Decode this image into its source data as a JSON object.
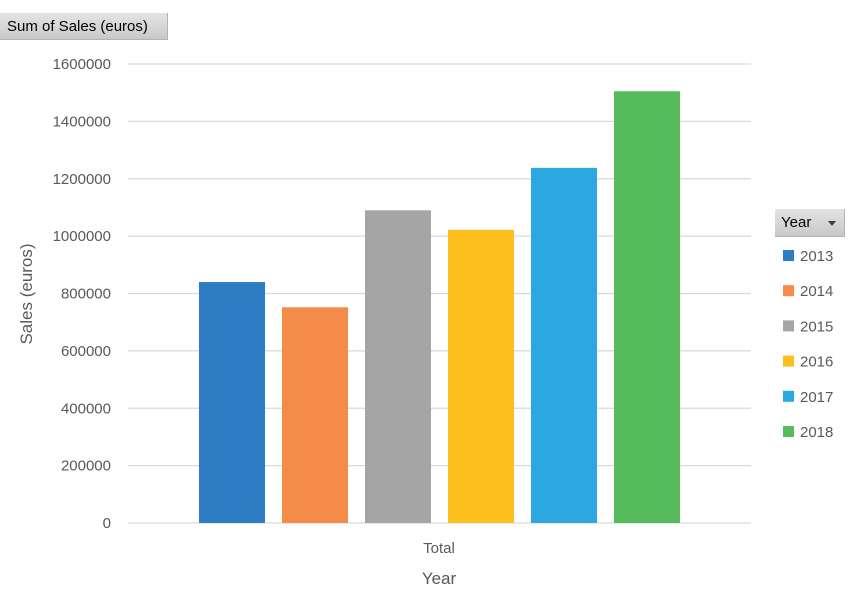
{
  "field_button": {
    "label": "Sum of Sales (euros)"
  },
  "legend_button": {
    "label": "Year"
  },
  "chart_data": {
    "type": "bar",
    "categories": [
      "Total"
    ],
    "series": [
      {
        "name": "2013",
        "values": [
          840000
        ],
        "color": "#2e7dc4"
      },
      {
        "name": "2014",
        "values": [
          752000
        ],
        "color": "#f58b48"
      },
      {
        "name": "2015",
        "values": [
          1090000
        ],
        "color": "#a5a5a5"
      },
      {
        "name": "2016",
        "values": [
          1022000
        ],
        "color": "#fcbf1e"
      },
      {
        "name": "2017",
        "values": [
          1238000
        ],
        "color": "#2ba8e0"
      },
      {
        "name": "2018",
        "values": [
          1505000
        ],
        "color": "#56bc5b"
      }
    ],
    "xlabel": "Year",
    "ylabel": "Sales (euros)",
    "ylim": [
      0,
      1600000
    ],
    "yticks": [
      0,
      200000,
      400000,
      600000,
      800000,
      1000000,
      1200000,
      1400000,
      1600000
    ],
    "grid": true,
    "legend": "right"
  }
}
